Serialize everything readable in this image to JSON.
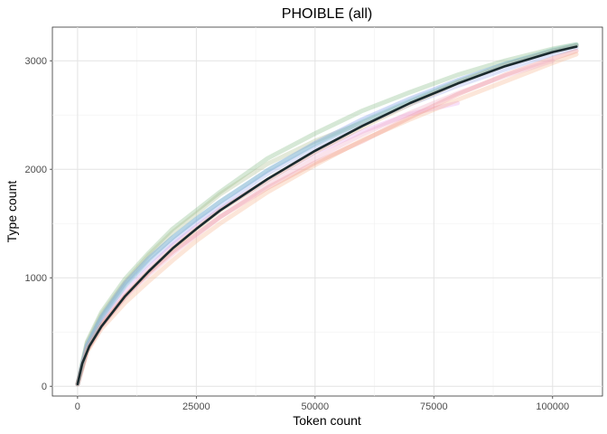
{
  "chart_data": {
    "type": "line",
    "title": "PHOIBLE (all)",
    "xlabel": "Token count",
    "ylabel": "Type count",
    "xlim": [
      -5300,
      110500
    ],
    "ylim": [
      -90,
      3310
    ],
    "x_ticks": [
      0,
      25000,
      50000,
      75000,
      100000
    ],
    "y_ticks": [
      0,
      1000,
      2000,
      3000
    ],
    "x_tick_labels": [
      "0",
      "25000",
      "50000",
      "75000",
      "100000"
    ],
    "y_tick_labels": [
      "0",
      "1000",
      "2000",
      "3000"
    ],
    "grid": true,
    "legend": "none",
    "fit_curve": {
      "color": "#1a2a2e",
      "x": [
        0,
        1000,
        2500,
        5000,
        10000,
        15000,
        20000,
        25000,
        30000,
        40000,
        50000,
        60000,
        70000,
        80000,
        90000,
        100000,
        105000
      ],
      "y": [
        20,
        210,
        370,
        550,
        830,
        1060,
        1270,
        1450,
        1620,
        1910,
        2170,
        2400,
        2610,
        2790,
        2950,
        3080,
        3130
      ]
    },
    "series": [
      {
        "color": "#7fb77e",
        "x": [
          0,
          2000,
          5000,
          10000,
          15000,
          20000,
          25000,
          30000,
          40000,
          50000,
          60000,
          70000,
          80000,
          90000,
          100000,
          105000
        ],
        "y": [
          20,
          410,
          680,
          990,
          1230,
          1450,
          1620,
          1790,
          2100,
          2330,
          2540,
          2710,
          2870,
          3000,
          3110,
          3150
        ]
      },
      {
        "color": "#a9ba8a",
        "x": [
          0,
          2000,
          5000,
          10000,
          15000,
          20000,
          25000,
          30000,
          40000,
          50000,
          60000,
          70000,
          80000,
          90000,
          100000,
          105000
        ],
        "y": [
          20,
          400,
          660,
          960,
          1210,
          1420,
          1590,
          1770,
          2050,
          2260,
          2430,
          2620,
          2800,
          2960,
          3090,
          3140
        ]
      },
      {
        "color": "#6d8fe6",
        "x": [
          0,
          2000,
          5000,
          10000,
          15000,
          20000,
          25000,
          30000,
          40000,
          50000,
          60000,
          70000,
          80000,
          90000,
          100000,
          105000
        ],
        "y": [
          20,
          380,
          640,
          950,
          1180,
          1370,
          1540,
          1700,
          1990,
          2240,
          2460,
          2650,
          2820,
          2970,
          3090,
          3140
        ]
      },
      {
        "color": "#9aaaf0",
        "x": [
          0,
          2000,
          5000,
          10000,
          15000,
          20000,
          25000,
          30000,
          40000,
          50000,
          60000,
          70000,
          80000,
          90000,
          100000,
          105000
        ],
        "y": [
          20,
          370,
          620,
          920,
          1140,
          1330,
          1510,
          1660,
          1960,
          2200,
          2410,
          2600,
          2770,
          2920,
          3060,
          3120
        ]
      },
      {
        "color": "#e8a0e8",
        "x": [
          0,
          2000,
          5000,
          10000,
          15000,
          20000,
          25000,
          30000,
          40000,
          50000,
          60000,
          70000,
          80000
        ],
        "y": [
          20,
          350,
          580,
          860,
          1090,
          1300,
          1470,
          1630,
          1900,
          2150,
          2350,
          2510,
          2610
        ]
      },
      {
        "color": "#f08080",
        "x": [
          0,
          2000,
          5000,
          10000,
          15000,
          20000,
          25000,
          30000,
          40000,
          50000,
          60000,
          70000,
          80000,
          90000,
          100000,
          105000
        ],
        "y": [
          20,
          340,
          560,
          830,
          1050,
          1240,
          1400,
          1560,
          1830,
          2060,
          2260,
          2480,
          2690,
          2870,
          3020,
          3090
        ]
      },
      {
        "color": "#f5b08a",
        "x": [
          0,
          2000,
          5000,
          10000,
          15000,
          20000,
          25000,
          30000,
          40000,
          50000,
          60000,
          70000,
          80000,
          90000,
          100000,
          105000
        ],
        "y": [
          20,
          320,
          530,
          770,
          970,
          1160,
          1340,
          1500,
          1790,
          2040,
          2270,
          2460,
          2640,
          2810,
          2980,
          3060
        ]
      },
      {
        "color": "#d8b880",
        "x": [
          0,
          2000,
          5000,
          10000,
          15000,
          20000,
          25000,
          30000,
          40000,
          50000,
          60000,
          70000,
          80000,
          90000,
          100000,
          105000
        ],
        "y": [
          20,
          330,
          560,
          830,
          1060,
          1270,
          1450,
          1620,
          1900,
          2160,
          2390,
          2600,
          2800,
          2960,
          3090,
          3140
        ]
      },
      {
        "color": "#f0a8c0",
        "x": [
          0,
          2000,
          5000,
          10000,
          15000,
          20000,
          25000,
          30000,
          40000,
          50000,
          60000,
          70000,
          80000,
          90000,
          100000
        ],
        "y": [
          20,
          330,
          550,
          820,
          1030,
          1220,
          1390,
          1560,
          1850,
          2100,
          2320,
          2520,
          2700,
          2860,
          3000
        ]
      },
      {
        "color": "#7fc8c0",
        "x": [
          0,
          2000,
          5000,
          10000,
          15000,
          20000,
          25000,
          30000,
          40000,
          50000,
          60000,
          70000,
          80000,
          90000,
          100000,
          105000
        ],
        "y": [
          20,
          370,
          630,
          930,
          1170,
          1370,
          1540,
          1700,
          1990,
          2230,
          2440,
          2630,
          2810,
          2970,
          3100,
          3150
        ]
      }
    ]
  }
}
